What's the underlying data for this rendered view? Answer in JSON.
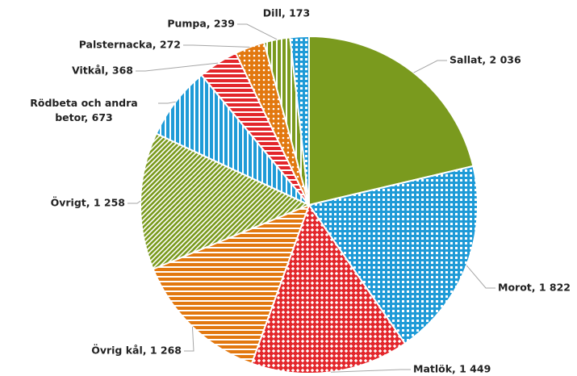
{
  "chart_data": {
    "type": "pie",
    "values": [
      2036,
      1822,
      1449,
      1268,
      1258,
      673,
      368,
      272,
      239,
      173
    ],
    "value_labels": [
      "Sallat, 2 036",
      "Morot, 1 822",
      "Matlök, 1 449",
      "Övrig kål, 1 268",
      "Övrigt, 1 258",
      "Rödbeta och andra betor, 673",
      "Vitkål, 368",
      "Palsternacka, 272",
      "Pumpa, 239",
      "Dill, 173"
    ],
    "colors": [
      "#7a9a1e",
      "#1f9bd7",
      "#e3262b",
      "#e2780f",
      "#7a9a1e",
      "#1f9bd7",
      "#e3262b",
      "#e2780f",
      "#7a9a1e",
      "#1f9bd7"
    ],
    "patterns": [
      "solid",
      "checker",
      "diamond",
      "hstripe",
      "diagonal",
      "vstripe",
      "hstripe",
      "dots",
      "vstripe",
      "checker"
    ]
  }
}
